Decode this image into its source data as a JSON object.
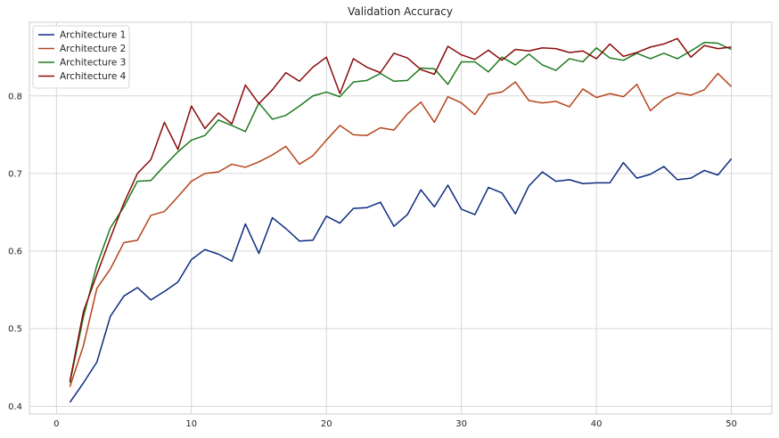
{
  "chart_data": {
    "type": "line",
    "title": "Validation Accuracy",
    "xlabel": "",
    "ylabel": "",
    "xlim": [
      -2,
      53
    ],
    "ylim": [
      0.39,
      0.895
    ],
    "xticks": [
      0,
      10,
      20,
      30,
      40,
      50
    ],
    "yticks": [
      0.4,
      0.5,
      0.6,
      0.7,
      0.8
    ],
    "grid": true,
    "legend_position": "top-left",
    "x": [
      1,
      2,
      3,
      4,
      5,
      6,
      7,
      8,
      9,
      10,
      11,
      12,
      13,
      14,
      15,
      16,
      17,
      18,
      19,
      20,
      21,
      22,
      23,
      24,
      25,
      26,
      27,
      28,
      29,
      30,
      31,
      32,
      33,
      34,
      35,
      36,
      37,
      38,
      39,
      40,
      41,
      42,
      43,
      44,
      45,
      46,
      47,
      48,
      49,
      50
    ],
    "series": [
      {
        "name": "Architecture 1",
        "color": "#0c2b7f",
        "values": [
          0.405,
          0.43,
          0.457,
          0.516,
          0.542,
          0.553,
          0.537,
          0.548,
          0.56,
          0.589,
          0.602,
          0.596,
          0.587,
          0.635,
          0.597,
          0.643,
          0.629,
          0.613,
          0.614,
          0.645,
          0.636,
          0.655,
          0.656,
          0.663,
          0.632,
          0.647,
          0.679,
          0.657,
          0.685,
          0.654,
          0.647,
          0.682,
          0.675,
          0.648,
          0.684,
          0.702,
          0.69,
          0.692,
          0.687,
          0.688,
          0.688,
          0.714,
          0.694,
          0.699,
          0.709,
          0.692,
          0.694,
          0.704,
          0.698,
          0.719
        ]
      },
      {
        "name": "Architecture 2",
        "color": "#b5441a",
        "values": [
          0.425,
          0.478,
          0.552,
          0.577,
          0.611,
          0.614,
          0.646,
          0.651,
          0.67,
          0.69,
          0.7,
          0.702,
          0.712,
          0.708,
          0.715,
          0.724,
          0.735,
          0.712,
          0.723,
          0.743,
          0.762,
          0.75,
          0.749,
          0.759,
          0.756,
          0.777,
          0.792,
          0.766,
          0.799,
          0.791,
          0.776,
          0.802,
          0.805,
          0.818,
          0.794,
          0.791,
          0.793,
          0.786,
          0.809,
          0.798,
          0.803,
          0.799,
          0.815,
          0.781,
          0.796,
          0.804,
          0.801,
          0.808,
          0.829,
          0.812
        ]
      },
      {
        "name": "Architecture 3",
        "color": "#1f7a1f",
        "values": [
          0.43,
          0.515,
          0.582,
          0.63,
          0.657,
          0.69,
          0.691,
          0.71,
          0.728,
          0.743,
          0.749,
          0.769,
          0.762,
          0.754,
          0.791,
          0.77,
          0.775,
          0.787,
          0.8,
          0.805,
          0.799,
          0.818,
          0.82,
          0.829,
          0.819,
          0.82,
          0.836,
          0.835,
          0.815,
          0.844,
          0.844,
          0.831,
          0.85,
          0.84,
          0.854,
          0.84,
          0.833,
          0.848,
          0.844,
          0.862,
          0.849,
          0.846,
          0.855,
          0.848,
          0.855,
          0.848,
          0.858,
          0.869,
          0.868,
          0.86
        ]
      },
      {
        "name": "Architecture 4",
        "color": "#8b0a0a",
        "values": [
          0.432,
          0.522,
          0.57,
          0.617,
          0.662,
          0.7,
          0.718,
          0.766,
          0.731,
          0.787,
          0.758,
          0.778,
          0.764,
          0.814,
          0.79,
          0.808,
          0.83,
          0.819,
          0.837,
          0.85,
          0.803,
          0.848,
          0.837,
          0.83,
          0.855,
          0.849,
          0.834,
          0.828,
          0.864,
          0.853,
          0.847,
          0.859,
          0.846,
          0.86,
          0.858,
          0.862,
          0.861,
          0.856,
          0.858,
          0.848,
          0.867,
          0.851,
          0.856,
          0.863,
          0.867,
          0.874,
          0.85,
          0.865,
          0.861,
          0.863
        ]
      }
    ]
  }
}
